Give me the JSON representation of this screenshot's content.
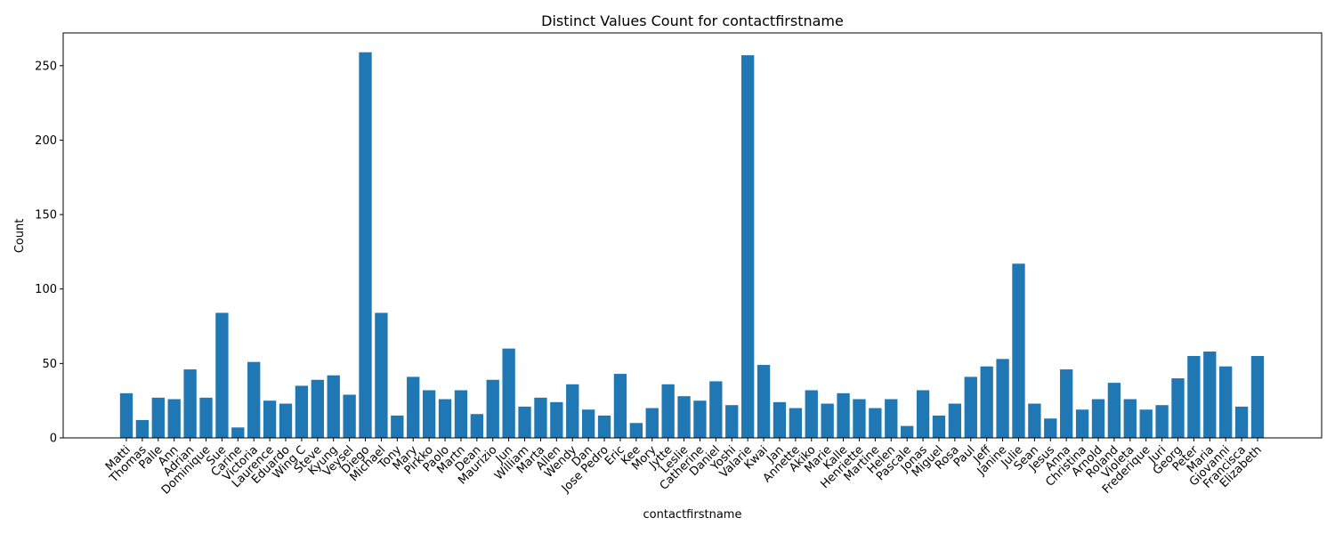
{
  "chart_data": {
    "type": "bar",
    "title": "Distinct Values Count for contactfirstname",
    "xlabel": "contactfirstname",
    "ylabel": "Count",
    "ylim": [
      0,
      272
    ],
    "yticks": [
      0,
      50,
      100,
      150,
      200,
      250
    ],
    "bar_color": "#1f77b4",
    "grid": false,
    "categories": [
      "Matti",
      "Thomas",
      "Palle",
      "Ann",
      "Adrian",
      "Dominique",
      "Sue",
      "Carine",
      "Victoria",
      "Laurence",
      "Eduardo",
      "Wing C",
      "Steve",
      "Kyung",
      "Veysel",
      "Diego",
      "Michael",
      "Tony",
      "Mary",
      "Pirkko",
      "Paolo",
      "Martn",
      "Dean",
      "Maurizio",
      "Jun",
      "William",
      "Marta",
      "Allen",
      "Wendy",
      "Dan",
      "Jose Pedro",
      "Eric",
      "Kee",
      "Mory",
      "Jytte",
      "Leslie",
      "Catherine",
      "Daniel",
      "Yoshi",
      "Valarie",
      "Kwai",
      "Jan",
      "Annette",
      "Akiko",
      "Marie",
      "Kalle",
      "Henriette",
      "Martine",
      "Helen",
      "Pascale",
      "Jonas",
      "Miguel",
      "Rosa",
      "Paul",
      "Jeff",
      "Janine",
      "Julie",
      "Sean",
      "Jesus",
      "Anna",
      "Christina",
      "Arnold",
      "Roland",
      "Violeta",
      "Frederique",
      "Juri",
      "Georg",
      "Peter",
      "Maria",
      "Giovanni",
      "Francisca",
      "Elizabeth"
    ],
    "values": [
      30,
      12,
      27,
      26,
      46,
      27,
      84,
      7,
      51,
      25,
      23,
      35,
      39,
      42,
      29,
      259,
      84,
      15,
      41,
      32,
      26,
      32,
      16,
      39,
      60,
      21,
      27,
      24,
      36,
      19,
      15,
      43,
      10,
      20,
      36,
      28,
      25,
      38,
      22,
      257,
      49,
      24,
      20,
      32,
      23,
      30,
      26,
      20,
      26,
      8,
      32,
      15,
      23,
      41,
      48,
      53,
      117,
      23,
      13,
      46,
      19,
      26,
      37,
      26,
      19,
      22,
      40,
      55,
      58,
      48,
      21,
      55
    ]
  }
}
